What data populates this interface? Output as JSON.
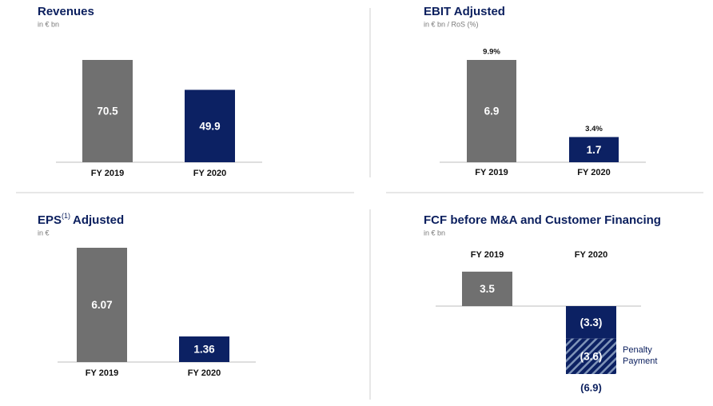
{
  "chart_data": [
    {
      "type": "bar",
      "title": "Revenues",
      "subtitle": "in € bn",
      "categories": [
        "FY 2019",
        "FY 2020"
      ],
      "series": [
        {
          "values": [
            70.5,
            49.9
          ],
          "colors": [
            "#707070",
            "#0c2163"
          ]
        }
      ]
    },
    {
      "type": "bar",
      "title": "EBIT Adjusted",
      "subtitle": "in € bn / RoS (%)",
      "categories": [
        "FY 2019",
        "FY 2020"
      ],
      "series": [
        {
          "values": [
            6.9,
            1.7
          ],
          "colors": [
            "#707070",
            "#0c2163"
          ]
        }
      ],
      "ros": {
        "values": [
          9.9,
          3.4
        ],
        "value_labels": [
          "9.9%",
          "3.4%"
        ]
      }
    },
    {
      "type": "bar",
      "title": "EPS",
      "title_superscript": "(1)",
      "title_suffix": "Adjusted",
      "subtitle": "in €",
      "categories": [
        "FY 2019",
        "FY 2020"
      ],
      "series": [
        {
          "values": [
            6.07,
            1.36
          ],
          "colors": [
            "#707070",
            "#0c2163"
          ]
        }
      ]
    },
    {
      "type": "bar",
      "title": "FCF before M&A and Customer Financing",
      "subtitle": "in € bn",
      "categories": [
        "FY 2019",
        "FY 2020"
      ],
      "series": [
        {
          "values": [
            3.5,
            -3.3
          ],
          "value_labels": [
            "3.5",
            "(3.3)"
          ],
          "colors": [
            "#707070",
            "#0c2163"
          ]
        },
        {
          "name": "Penalty Payment",
          "values": [
            null,
            -3.6
          ],
          "value_labels": [
            null,
            "(3.6)"
          ],
          "colors": [
            null,
            "#0c2163"
          ],
          "hatch": true
        }
      ],
      "totals": [
        null,
        -6.9
      ],
      "total_labels": [
        null,
        "(6.9)"
      ]
    }
  ]
}
